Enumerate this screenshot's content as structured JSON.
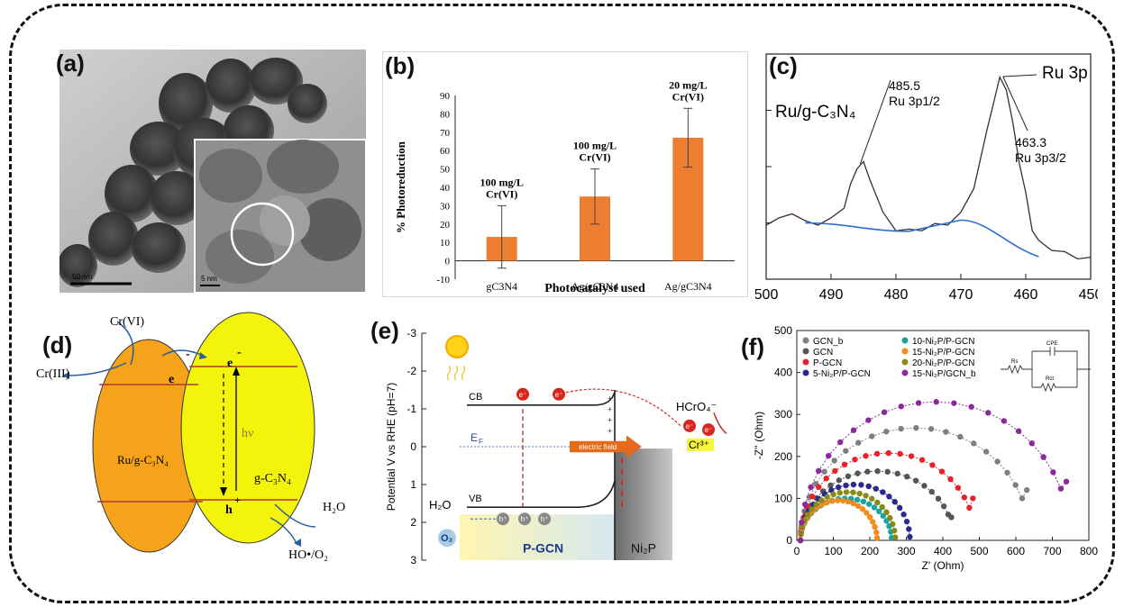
{
  "labels": {
    "a": "(a)",
    "b": "(b)",
    "c": "(c)",
    "d": "(d)",
    "e": "(e)",
    "f": "(f)"
  },
  "panel_a": {
    "scale_main": "50  nm",
    "scale_inset": "5 nm"
  },
  "panel_d": {
    "cr6": "Cr(VI)",
    "cr3": "Cr(III)",
    "e1": "e",
    "e2": "e",
    "e_minus": "-",
    "hv": "hν",
    "gc3n4": "g-C₃N₄",
    "ru": "Ru/g-C₃N₄",
    "h": "h",
    "h_plus": "+",
    "h2o": "H₂O",
    "ho": "HO•/O₂"
  },
  "panel_e": {
    "ylabel": "Potential V vs RHE (pH=7)",
    "cb": "CB",
    "vb": "VB",
    "ef": "E",
    "ef_sub": "F",
    "field": "electric field",
    "pgcn": "P-GCN",
    "ni2p": "Ni₂P",
    "hcro4": "HCrO₄⁻",
    "cr3": "Cr³⁺",
    "h2o": "H₂O",
    "o2": "O₂"
  },
  "panel_f": {
    "ylabel": "-Z'' (Ohm)",
    "xlabel": "Z' (Ohm)",
    "circuit_cpe": "CPE",
    "circuit_rs": "Rs",
    "circuit_rct": "Rct"
  },
  "chart_data": [
    {
      "id": "b",
      "type": "bar",
      "categories": [
        "gC3N4",
        "Ag/gC3N4",
        "Ag/gC3N4"
      ],
      "values": [
        13,
        35,
        67
      ],
      "errors": [
        17,
        15,
        16
      ],
      "annotations": [
        "100 mg/L Cr(VI)",
        "100 mg/L Cr(VI)",
        "20 mg/L Cr(VI)"
      ],
      "xlabel": "Photocatalyst used",
      "ylabel": "% Photoreduction",
      "ylim": [
        -10,
        90
      ],
      "yticks": [
        -10,
        0,
        10,
        20,
        30,
        40,
        50,
        60,
        70,
        80,
        90
      ],
      "color": "#ed7d31"
    },
    {
      "id": "c",
      "type": "line",
      "x": [
        500,
        498,
        496,
        494,
        492,
        490,
        488,
        487,
        486,
        485,
        484,
        482,
        480,
        478,
        476,
        474,
        472,
        470,
        468,
        466,
        465,
        464,
        463,
        462,
        461,
        460,
        459,
        458,
        456,
        454,
        452,
        450
      ],
      "y": [
        20,
        21,
        24,
        20,
        20,
        21,
        26,
        33,
        40,
        41,
        36,
        23,
        18,
        17,
        18,
        19,
        20,
        23,
        33,
        52,
        63,
        71,
        68,
        55,
        42,
        30,
        18,
        13,
        11,
        9,
        8,
        7
      ],
      "xlim": [
        500,
        450
      ],
      "xticks": [
        500,
        490,
        480,
        470,
        460,
        450
      ],
      "ylim": [
        0,
        80
      ],
      "annotations": [
        "Ru/g-C₃N₄",
        "485.5",
        "Ru 3p1/2",
        "463.3",
        "Ru 3p3/2",
        "Ru 3p"
      ]
    },
    {
      "id": "e",
      "type": "diagram",
      "yticks": [
        -3,
        -2,
        -1,
        0,
        1,
        2,
        3
      ],
      "ylim": [
        -3,
        3
      ],
      "cb": -1.1,
      "vb": 1.6,
      "ef": 0
    },
    {
      "id": "f",
      "type": "scatter",
      "xlim": [
        0,
        800
      ],
      "ylim": [
        0,
        500
      ],
      "xticks": [
        0,
        100,
        200,
        300,
        400,
        500,
        600,
        700,
        800
      ],
      "yticks": [
        0,
        100,
        200,
        300,
        400,
        500
      ],
      "xlabel": "Z' (Ohm)",
      "ylabel": "-Z'' (Ohm)",
      "series": [
        {
          "name": "GCN_b",
          "color": "#7f7f7f",
          "start": 10,
          "end": 640,
          "peak": 268,
          "tail": 120
        },
        {
          "name": "GCN",
          "color": "#555555",
          "start": 10,
          "end": 430,
          "peak": 165,
          "tail": 55
        },
        {
          "name": "P-GCN",
          "color": "#e8212d",
          "start": 10,
          "end": 490,
          "peak": 208,
          "tail": 100
        },
        {
          "name": "5-Ni₂P/P-GCN",
          "color": "#2a2a8c",
          "start": 10,
          "end": 310,
          "peak": 133,
          "tail": 0
        },
        {
          "name": "10-Ni₂P/P-GCN",
          "color": "#1aa3a3",
          "start": 10,
          "end": 260,
          "peak": 100,
          "tail": 0
        },
        {
          "name": "15-Ni₂P/P-GCN",
          "color": "#f28c1e",
          "start": 10,
          "end": 220,
          "peak": 95,
          "tail": 0
        },
        {
          "name": "20-Ni₂P/P-GCN",
          "color": "#8a8a1a",
          "start": 10,
          "end": 270,
          "peak": 115,
          "tail": 0
        },
        {
          "name": "15-Ni₂P/GCN_b",
          "color": "#8a2a9a",
          "start": 10,
          "end": 750,
          "peak": 330,
          "tail": 140
        }
      ]
    }
  ]
}
